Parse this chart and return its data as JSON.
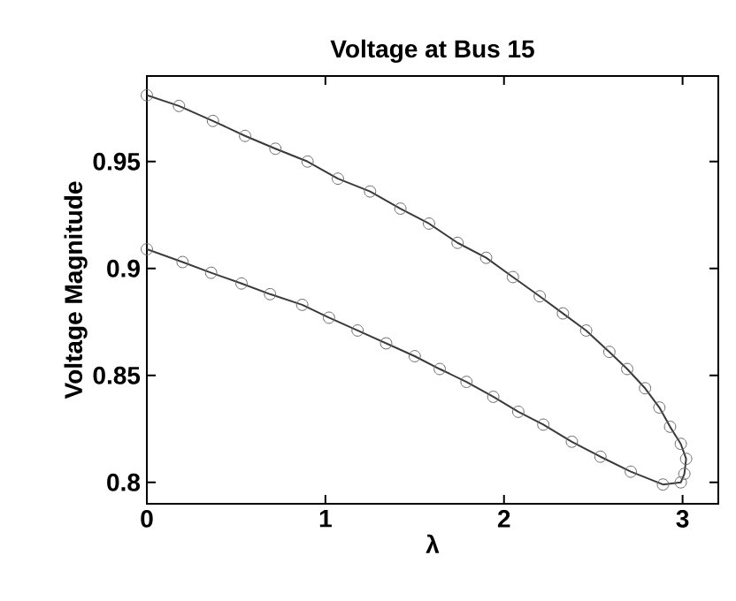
{
  "chart_data": {
    "type": "line",
    "title": "Voltage at Bus 15",
    "xlabel": "λ",
    "ylabel": "Voltage Magnitude",
    "xlim": [
      0,
      3.2
    ],
    "ylim": [
      0.79,
      0.99
    ],
    "xticks": [
      0,
      1,
      2,
      3
    ],
    "yticks": [
      0.8,
      0.85,
      0.9,
      0.95
    ],
    "marker": "circle",
    "line_style": "solid",
    "series": [
      {
        "color": "#3a3a3a",
        "x": [
          0,
          0.18,
          0.37,
          0.55,
          0.72,
          0.9,
          1.07,
          1.25,
          1.42,
          1.58,
          1.74,
          1.9,
          2.05,
          2.2,
          2.33,
          2.46,
          2.59,
          2.69,
          2.79,
          2.87,
          2.93,
          2.99,
          3.02,
          3.01,
          2.99,
          2.89,
          2.71,
          2.54,
          2.38,
          2.22,
          2.08,
          1.94,
          1.79,
          1.64,
          1.5,
          1.34,
          1.18,
          1.02,
          0.87,
          0.69,
          0.53,
          0.36,
          0.2,
          0
        ],
        "values": [
          0.981,
          0.976,
          0.969,
          0.962,
          0.956,
          0.95,
          0.942,
          0.936,
          0.928,
          0.921,
          0.912,
          0.905,
          0.896,
          0.887,
          0.879,
          0.871,
          0.861,
          0.853,
          0.844,
          0.835,
          0.826,
          0.818,
          0.811,
          0.804,
          0.8,
          0.799,
          0.805,
          0.812,
          0.819,
          0.827,
          0.833,
          0.84,
          0.847,
          0.853,
          0.859,
          0.865,
          0.871,
          0.877,
          0.883,
          0.888,
          0.893,
          0.898,
          0.903,
          0.909
        ]
      }
    ]
  }
}
